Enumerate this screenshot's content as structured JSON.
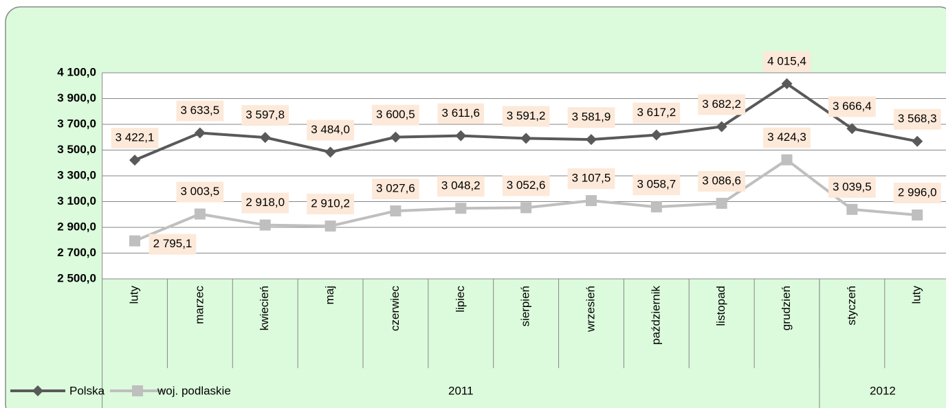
{
  "chart_data": {
    "type": "line",
    "categories": [
      "luty",
      "marzec",
      "kwiecień",
      "maj",
      "czerwiec",
      "lipiec",
      "sierpień",
      "wrzesień",
      "październik",
      "listopad",
      "grudzień",
      "styczeń",
      "luty"
    ],
    "groups": [
      {
        "name": "2011",
        "count": 11
      },
      {
        "name": "2012",
        "count": 2
      }
    ],
    "series": [
      {
        "name": "Polska",
        "color": "#595959",
        "marker": "diamond",
        "values": [
          3422.1,
          3633.5,
          3597.8,
          3484.0,
          3600.5,
          3611.6,
          3591.2,
          3581.9,
          3617.2,
          3682.2,
          4015.4,
          3666.4,
          3568.3
        ],
        "value_labels": [
          "3 422,1",
          "3 633,5",
          "3 597,8",
          "3 484,0",
          "3 600,5",
          "3 611,6",
          "3 591,2",
          "3 581,9",
          "3 617,2",
          "3 682,2",
          "4 015,4",
          "3 666,4",
          "3 568,3"
        ]
      },
      {
        "name": "woj. podlaskie",
        "color": "#bfbfbf",
        "marker": "square",
        "values": [
          2795.1,
          3003.5,
          2918.0,
          2910.2,
          3027.6,
          3048.2,
          3052.6,
          3107.5,
          3058.7,
          3086.6,
          3424.3,
          3039.5,
          2996.0
        ],
        "value_labels": [
          "2 795,1",
          "3 003,5",
          "2 918,0",
          "2 910,2",
          "3 027,6",
          "3 048,2",
          "3 052,6",
          "3 107,5",
          "3 058,7",
          "3 086,6",
          "3 424,3",
          "3 039,5",
          "2 996,0"
        ]
      }
    ],
    "ylim": [
      2500,
      4100
    ],
    "yticks": [
      {
        "value": 2500,
        "label": "2 500,0"
      },
      {
        "value": 2700,
        "label": "2 700,0"
      },
      {
        "value": 2900,
        "label": "2 900,0"
      },
      {
        "value": 3100,
        "label": "3 100,0"
      },
      {
        "value": 3300,
        "label": "3 300,0"
      },
      {
        "value": 3500,
        "label": "3 500,0"
      },
      {
        "value": 3700,
        "label": "3 700,0"
      },
      {
        "value": 3900,
        "label": "3 900,0"
      },
      {
        "value": 4100,
        "label": "4 100,0"
      }
    ],
    "grid": true,
    "legend": "bottom-left",
    "label_background": "#fde9d9",
    "background": "#dcfadc"
  }
}
